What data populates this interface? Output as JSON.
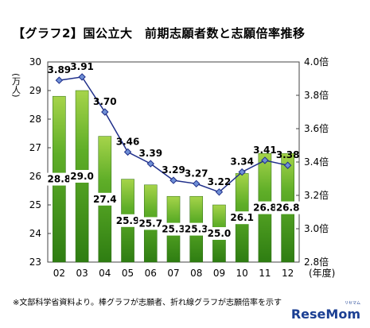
{
  "title": "【グラフ2】国公立大　前期志願者数と志願倍率推移",
  "footnote": "※文部科学省資料より。棒グラフが志願者、折れ線グラフが志願倍率を示す",
  "logo": {
    "text": "ReseMom",
    "sub": "リセマム"
  },
  "colors": {
    "bar_top": "#a6d44a",
    "bar_bottom": "#2e7d12",
    "bar_mid": "#5fae28",
    "line": "#1f2f8a",
    "marker": "#6f8fd6"
  },
  "chart_data": {
    "type": "bar",
    "title": "【グラフ2】国公立大　前期志願者数と志願倍率推移",
    "categories": [
      "02",
      "03",
      "04",
      "05",
      "06",
      "07",
      "08",
      "09",
      "10",
      "11",
      "12"
    ],
    "xlabel": "(年度)",
    "ylabel": "(万人)",
    "ylim": [
      23,
      30
    ],
    "yticks": [
      "23",
      "24",
      "25",
      "26",
      "27",
      "28",
      "29",
      "30"
    ],
    "y2lim": [
      2.8,
      4.0
    ],
    "y2ticks": [
      "2.8倍",
      "3.0倍",
      "3.2倍",
      "3.4倍",
      "3.6倍",
      "3.8倍",
      "4.0倍"
    ],
    "series": [
      {
        "type": "bar",
        "axis": "left",
        "values": [
          28.8,
          29.0,
          27.4,
          25.9,
          25.7,
          25.3,
          25.3,
          25.0,
          26.1,
          26.8,
          26.8
        ],
        "labels": [
          "28.8",
          "29.0",
          "27.4",
          "25.9",
          "25.7",
          "25.3",
          "25.3",
          "25.0",
          "26.1",
          "26.8",
          "26.8"
        ]
      },
      {
        "type": "line",
        "axis": "right",
        "values": [
          3.89,
          3.91,
          3.7,
          3.46,
          3.39,
          3.29,
          3.27,
          3.22,
          3.34,
          3.41,
          3.38
        ],
        "labels": [
          "3.89",
          "3.91",
          "3.70",
          "3.46",
          "3.39",
          "3.29",
          "3.27",
          "3.22",
          "3.34",
          "3.41",
          "3.38"
        ]
      }
    ],
    "grid": false,
    "legend": "none"
  }
}
